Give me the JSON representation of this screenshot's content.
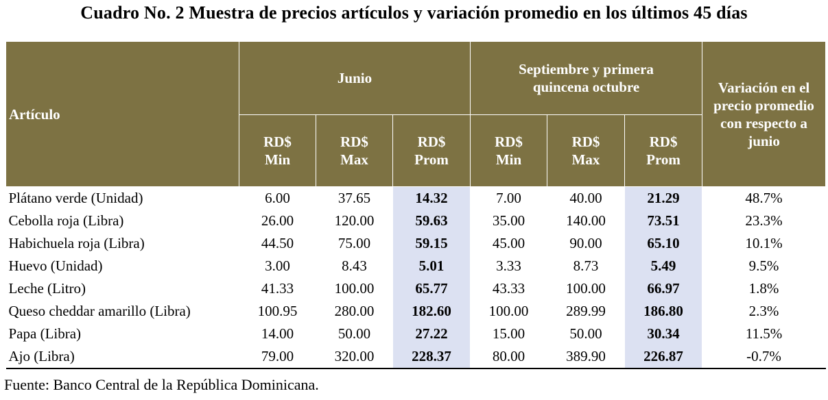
{
  "title": "Cuadro No. 2 Muestra de precios artículos y variación promedio en los últimos 45 días",
  "header": {
    "articulo": "Artículo",
    "junio": "Junio",
    "septiembre": "Septiembre y primera quincena octubre",
    "variacion": "Variación en el precio promedio con respecto a junio",
    "sub": [
      {
        "line1": "RD$",
        "line2": "Min"
      },
      {
        "line1": "RD$",
        "line2": "Max"
      },
      {
        "line1": "RD$",
        "line2": "Prom"
      },
      {
        "line1": "RD$",
        "line2": "Min"
      },
      {
        "line1": "RD$",
        "line2": "Max"
      },
      {
        "line1": "RD$",
        "line2": "Prom"
      }
    ]
  },
  "rows": [
    {
      "name": "Plátano verde (Unidad)",
      "jmin": "6.00",
      "jmax": "37.65",
      "jprom": "14.32",
      "smin": "7.00",
      "smax": "40.00",
      "sprom": "21.29",
      "var": "48.7%"
    },
    {
      "name": "Cebolla roja (Libra)",
      "jmin": "26.00",
      "jmax": "120.00",
      "jprom": "59.63",
      "smin": "35.00",
      "smax": "140.00",
      "sprom": "73.51",
      "var": "23.3%"
    },
    {
      "name": "Habichuela roja (Libra)",
      "jmin": "44.50",
      "jmax": "75.00",
      "jprom": "59.15",
      "smin": "45.00",
      "smax": "90.00",
      "sprom": "65.10",
      "var": "10.1%"
    },
    {
      "name": "Huevo (Unidad)",
      "jmin": "3.00",
      "jmax": "8.43",
      "jprom": "5.01",
      "smin": "3.33",
      "smax": "8.73",
      "sprom": "5.49",
      "var": "9.5%"
    },
    {
      "name": "Leche (Litro)",
      "jmin": "41.33",
      "jmax": "100.00",
      "jprom": "65.77",
      "smin": "43.33",
      "smax": "100.00",
      "sprom": "66.97",
      "var": "1.8%"
    },
    {
      "name": "Queso cheddar amarillo (Libra)",
      "jmin": "100.95",
      "jmax": "280.00",
      "jprom": "182.60",
      "smin": "100.00",
      "smax": "289.99",
      "sprom": "186.80",
      "var": "2.3%"
    },
    {
      "name": "Papa (Libra)",
      "jmin": "14.00",
      "jmax": "50.00",
      "jprom": "27.22",
      "smin": "15.00",
      "smax": "50.00",
      "sprom": "30.34",
      "var": "11.5%"
    },
    {
      "name": "Ajo (Libra)",
      "jmin": "79.00",
      "jmax": "320.00",
      "jprom": "228.37",
      "smin": "80.00",
      "smax": "389.90",
      "sprom": "226.87",
      "var": "-0.7%"
    }
  ],
  "source": "Fuente: Banco Central de la República Dominicana.",
  "colors": {
    "header_bg": "#7d7243",
    "prom_bg": "#dce1f2"
  }
}
